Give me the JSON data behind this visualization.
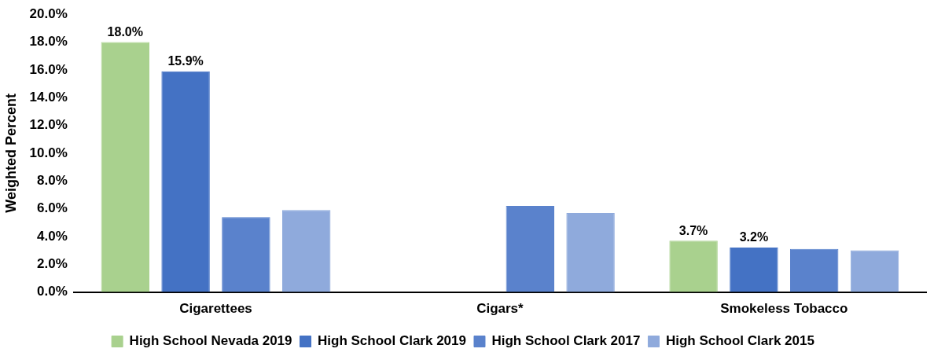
{
  "chart_data": {
    "type": "bar",
    "ylabel": "Weighted Percent",
    "categories": [
      "Cigarettees",
      "Cigars*",
      "Smokeless Tobacco"
    ],
    "series": [
      {
        "name": "High School Nevada 2019",
        "color": "#a9d18e",
        "values": [
          18.0,
          null,
          3.7
        ],
        "value_labels": [
          "18.0%",
          null,
          "3.7%"
        ]
      },
      {
        "name": "High School Clark 2019",
        "color": "#4472c4",
        "values": [
          15.9,
          null,
          3.2
        ],
        "value_labels": [
          "15.9%",
          null,
          "3.2%"
        ]
      },
      {
        "name": "High School Clark 2017",
        "color": "#5a82cc",
        "values": [
          5.4,
          6.2,
          3.1
        ]
      },
      {
        "name": "High School Clark 2015",
        "color": "#8faadc",
        "values": [
          5.9,
          5.7,
          3.0
        ]
      }
    ],
    "ylim": [
      0,
      20
    ],
    "yticks": [
      {
        "value": 0,
        "label": "0.0%"
      },
      {
        "value": 2,
        "label": "2.0%"
      },
      {
        "value": 4,
        "label": "4.0%"
      },
      {
        "value": 6,
        "label": "6.0%"
      },
      {
        "value": 8,
        "label": "8.0%"
      },
      {
        "value": 10,
        "label": "10.0%"
      },
      {
        "value": 12,
        "label": "12.0%"
      },
      {
        "value": 14,
        "label": "14.0%"
      },
      {
        "value": 16,
        "label": "16.0%"
      },
      {
        "value": 18,
        "label": "18.0%"
      },
      {
        "value": 20,
        "label": "20.0%"
      }
    ],
    "grid": false,
    "legend": "bottom"
  }
}
